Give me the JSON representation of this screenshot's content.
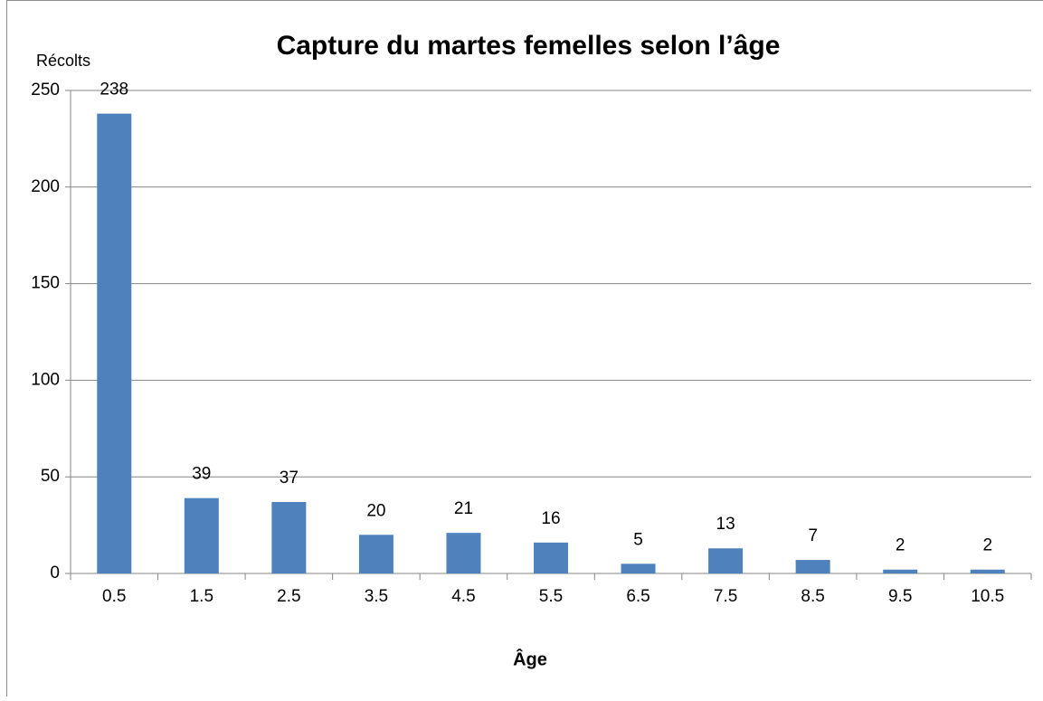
{
  "chart_data": {
    "type": "bar",
    "title": "Capture du martes femelles selon l’âge",
    "y_label": "Récolts",
    "x_label": "Âge",
    "categories": [
      "0.5",
      "1.5",
      "2.5",
      "3.5",
      "4.5",
      "5.5",
      "6.5",
      "7.5",
      "8.5",
      "9.5",
      "10.5"
    ],
    "values": [
      238,
      39,
      37,
      20,
      21,
      16,
      5,
      13,
      7,
      2,
      2
    ],
    "color": "#4f81bd",
    "ylim": [
      0,
      250
    ],
    "yticks": [
      0,
      50,
      100,
      150,
      200,
      250
    ],
    "grid": true
  }
}
